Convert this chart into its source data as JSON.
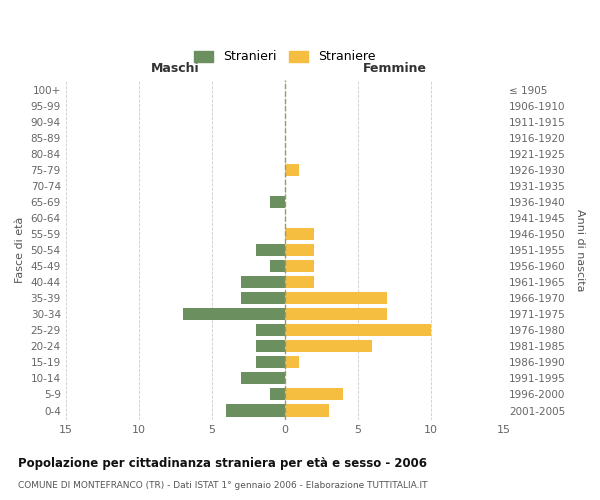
{
  "age_groups": [
    "100+",
    "95-99",
    "90-94",
    "85-89",
    "80-84",
    "75-79",
    "70-74",
    "65-69",
    "60-64",
    "55-59",
    "50-54",
    "45-49",
    "40-44",
    "35-39",
    "30-34",
    "25-29",
    "20-24",
    "15-19",
    "10-14",
    "5-9",
    "0-4"
  ],
  "birth_years": [
    "≤ 1905",
    "1906-1910",
    "1911-1915",
    "1916-1920",
    "1921-1925",
    "1926-1930",
    "1931-1935",
    "1936-1940",
    "1941-1945",
    "1946-1950",
    "1951-1955",
    "1956-1960",
    "1961-1965",
    "1966-1970",
    "1971-1975",
    "1976-1980",
    "1981-1985",
    "1986-1990",
    "1991-1995",
    "1996-2000",
    "2001-2005"
  ],
  "males": [
    0,
    0,
    0,
    0,
    0,
    0,
    0,
    1,
    0,
    0,
    2,
    1,
    3,
    3,
    7,
    2,
    2,
    2,
    3,
    1,
    4
  ],
  "females": [
    0,
    0,
    0,
    0,
    0,
    1,
    0,
    0,
    0,
    2,
    2,
    2,
    2,
    7,
    7,
    10,
    6,
    1,
    0,
    4,
    3
  ],
  "male_color": "#6b8f5e",
  "female_color": "#f5be41",
  "male_label": "Stranieri",
  "female_label": "Straniere",
  "title": "Popolazione per cittadinanza straniera per età e sesso - 2006",
  "subtitle": "COMUNE DI MONTEFRANCO (TR) - Dati ISTAT 1° gennaio 2006 - Elaborazione TUTTITALIA.IT",
  "ylabel_left": "Fasce di età",
  "ylabel_right": "Anni di nascita",
  "xlabel_left": "Maschi",
  "xlabel_right": "Femmine",
  "xlim": 15,
  "bg_color": "#ffffff",
  "grid_color": "#cccccc",
  "bar_height": 0.75
}
